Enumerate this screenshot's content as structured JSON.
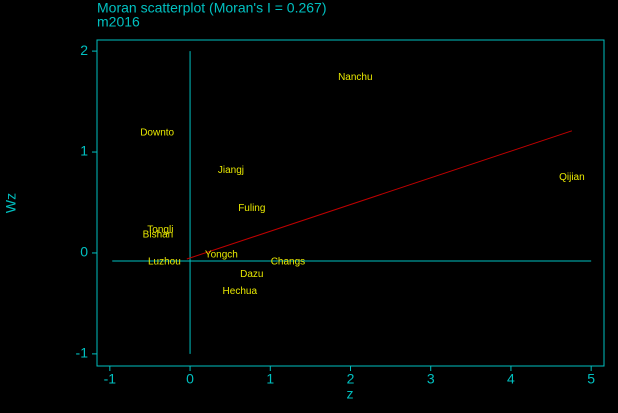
{
  "chart_data": {
    "type": "scatter",
    "title": "Moran scatterplot (Moran's I = 0.267)",
    "subtitle": "m2016",
    "x_label": "z",
    "y_label": "Wz",
    "xlim": [
      -1.16,
      5.16
    ],
    "ylim": [
      -1.12,
      2.11
    ],
    "xticks": [
      -1,
      0,
      1,
      2,
      3,
      4,
      5
    ],
    "yticks": [
      -1,
      0,
      1,
      2
    ],
    "axis_color": "#00c0c0",
    "label_color": "#e8e800",
    "series": [
      {
        "labels": [
          "Nanchu",
          "Downto",
          "Jiangj",
          "Qijian",
          "Fuling",
          "Tongli",
          "Bishan",
          "Yongch",
          "Changs",
          "Dazu",
          "Hechua",
          "Luzhou"
        ],
        "x": [
          2.06,
          -0.41,
          0.51,
          4.76,
          0.77,
          -0.37,
          -0.4,
          0.39,
          1.22,
          0.77,
          0.62,
          -0.32
        ],
        "values": [
          1.74,
          1.19,
          0.82,
          0.75,
          0.44,
          0.23,
          0.18,
          -0.02,
          -0.09,
          -0.21,
          -0.38,
          -0.09
        ]
      }
    ],
    "fit": {
      "x": [
        -0.04,
        4.76
      ],
      "y": [
        -0.06,
        1.21
      ],
      "color": "#c00000"
    },
    "hline": {
      "y": -0.08,
      "x": [
        -0.97,
        5.0
      ]
    },
    "vline": {
      "x": 0,
      "y": [
        -1.0,
        2.0
      ]
    }
  }
}
